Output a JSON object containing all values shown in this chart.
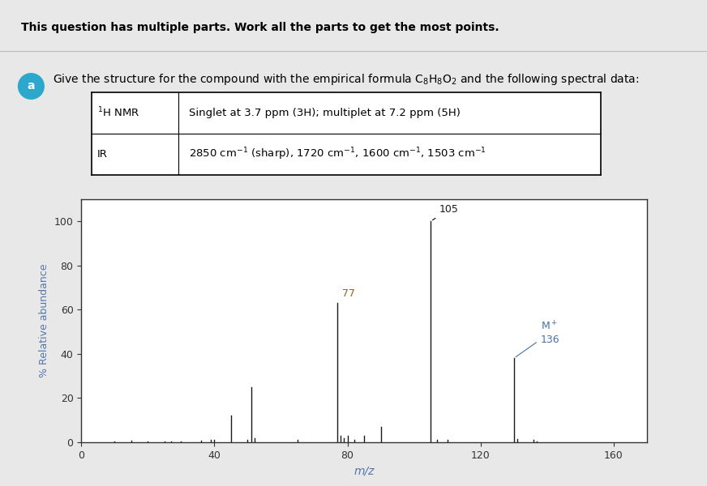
{
  "title_bold": "This question has multiple parts. Work all the parts to get the most points.",
  "part_label": "a",
  "table_rows": [
    [
      "¹H NMR",
      "Singlet at 3.7 ppm (3H); multiplet at 7.2 ppm (5H)"
    ],
    [
      "IR",
      "2850 cm⁻¹ (sharp), 1720 cm⁻¹, 1600 cm⁻¹, 1503 cm⁻¹"
    ]
  ],
  "ms_peaks": {
    "mz": [
      10,
      15,
      20,
      25,
      27,
      30,
      36,
      39,
      40,
      45,
      50,
      51,
      52,
      65,
      77,
      78,
      79,
      80,
      82,
      85,
      90,
      105,
      107,
      110,
      130,
      131,
      136,
      137
    ],
    "abundance": [
      0.5,
      0.8,
      0.5,
      0.5,
      0.5,
      0.5,
      0.8,
      1,
      1,
      12,
      1,
      25,
      2,
      1,
      63,
      3,
      2,
      3,
      1,
      3,
      7,
      100,
      1,
      1,
      38,
      1.5,
      1,
      0.5
    ]
  },
  "xlabel": "m/z",
  "ylabel": "% Relative abundance",
  "xlim": [
    0,
    170
  ],
  "ylim": [
    0,
    110
  ],
  "xticks": [
    0,
    40,
    80,
    120,
    160
  ],
  "yticks": [
    0,
    20,
    40,
    60,
    80,
    100
  ],
  "background_color": "#e8e8e8",
  "plot_bg": "#ffffff",
  "bar_color": "#1a1a1a",
  "label_color_77": "#8B6914",
  "label_color_105": "#1a1a1a",
  "label_color_136": "#4a6fa5",
  "circle_color": "#2da8cc",
  "separator_color": "#bbbbbb",
  "axis_label_color": "#5577aa",
  "tick_label_color": "#333333"
}
